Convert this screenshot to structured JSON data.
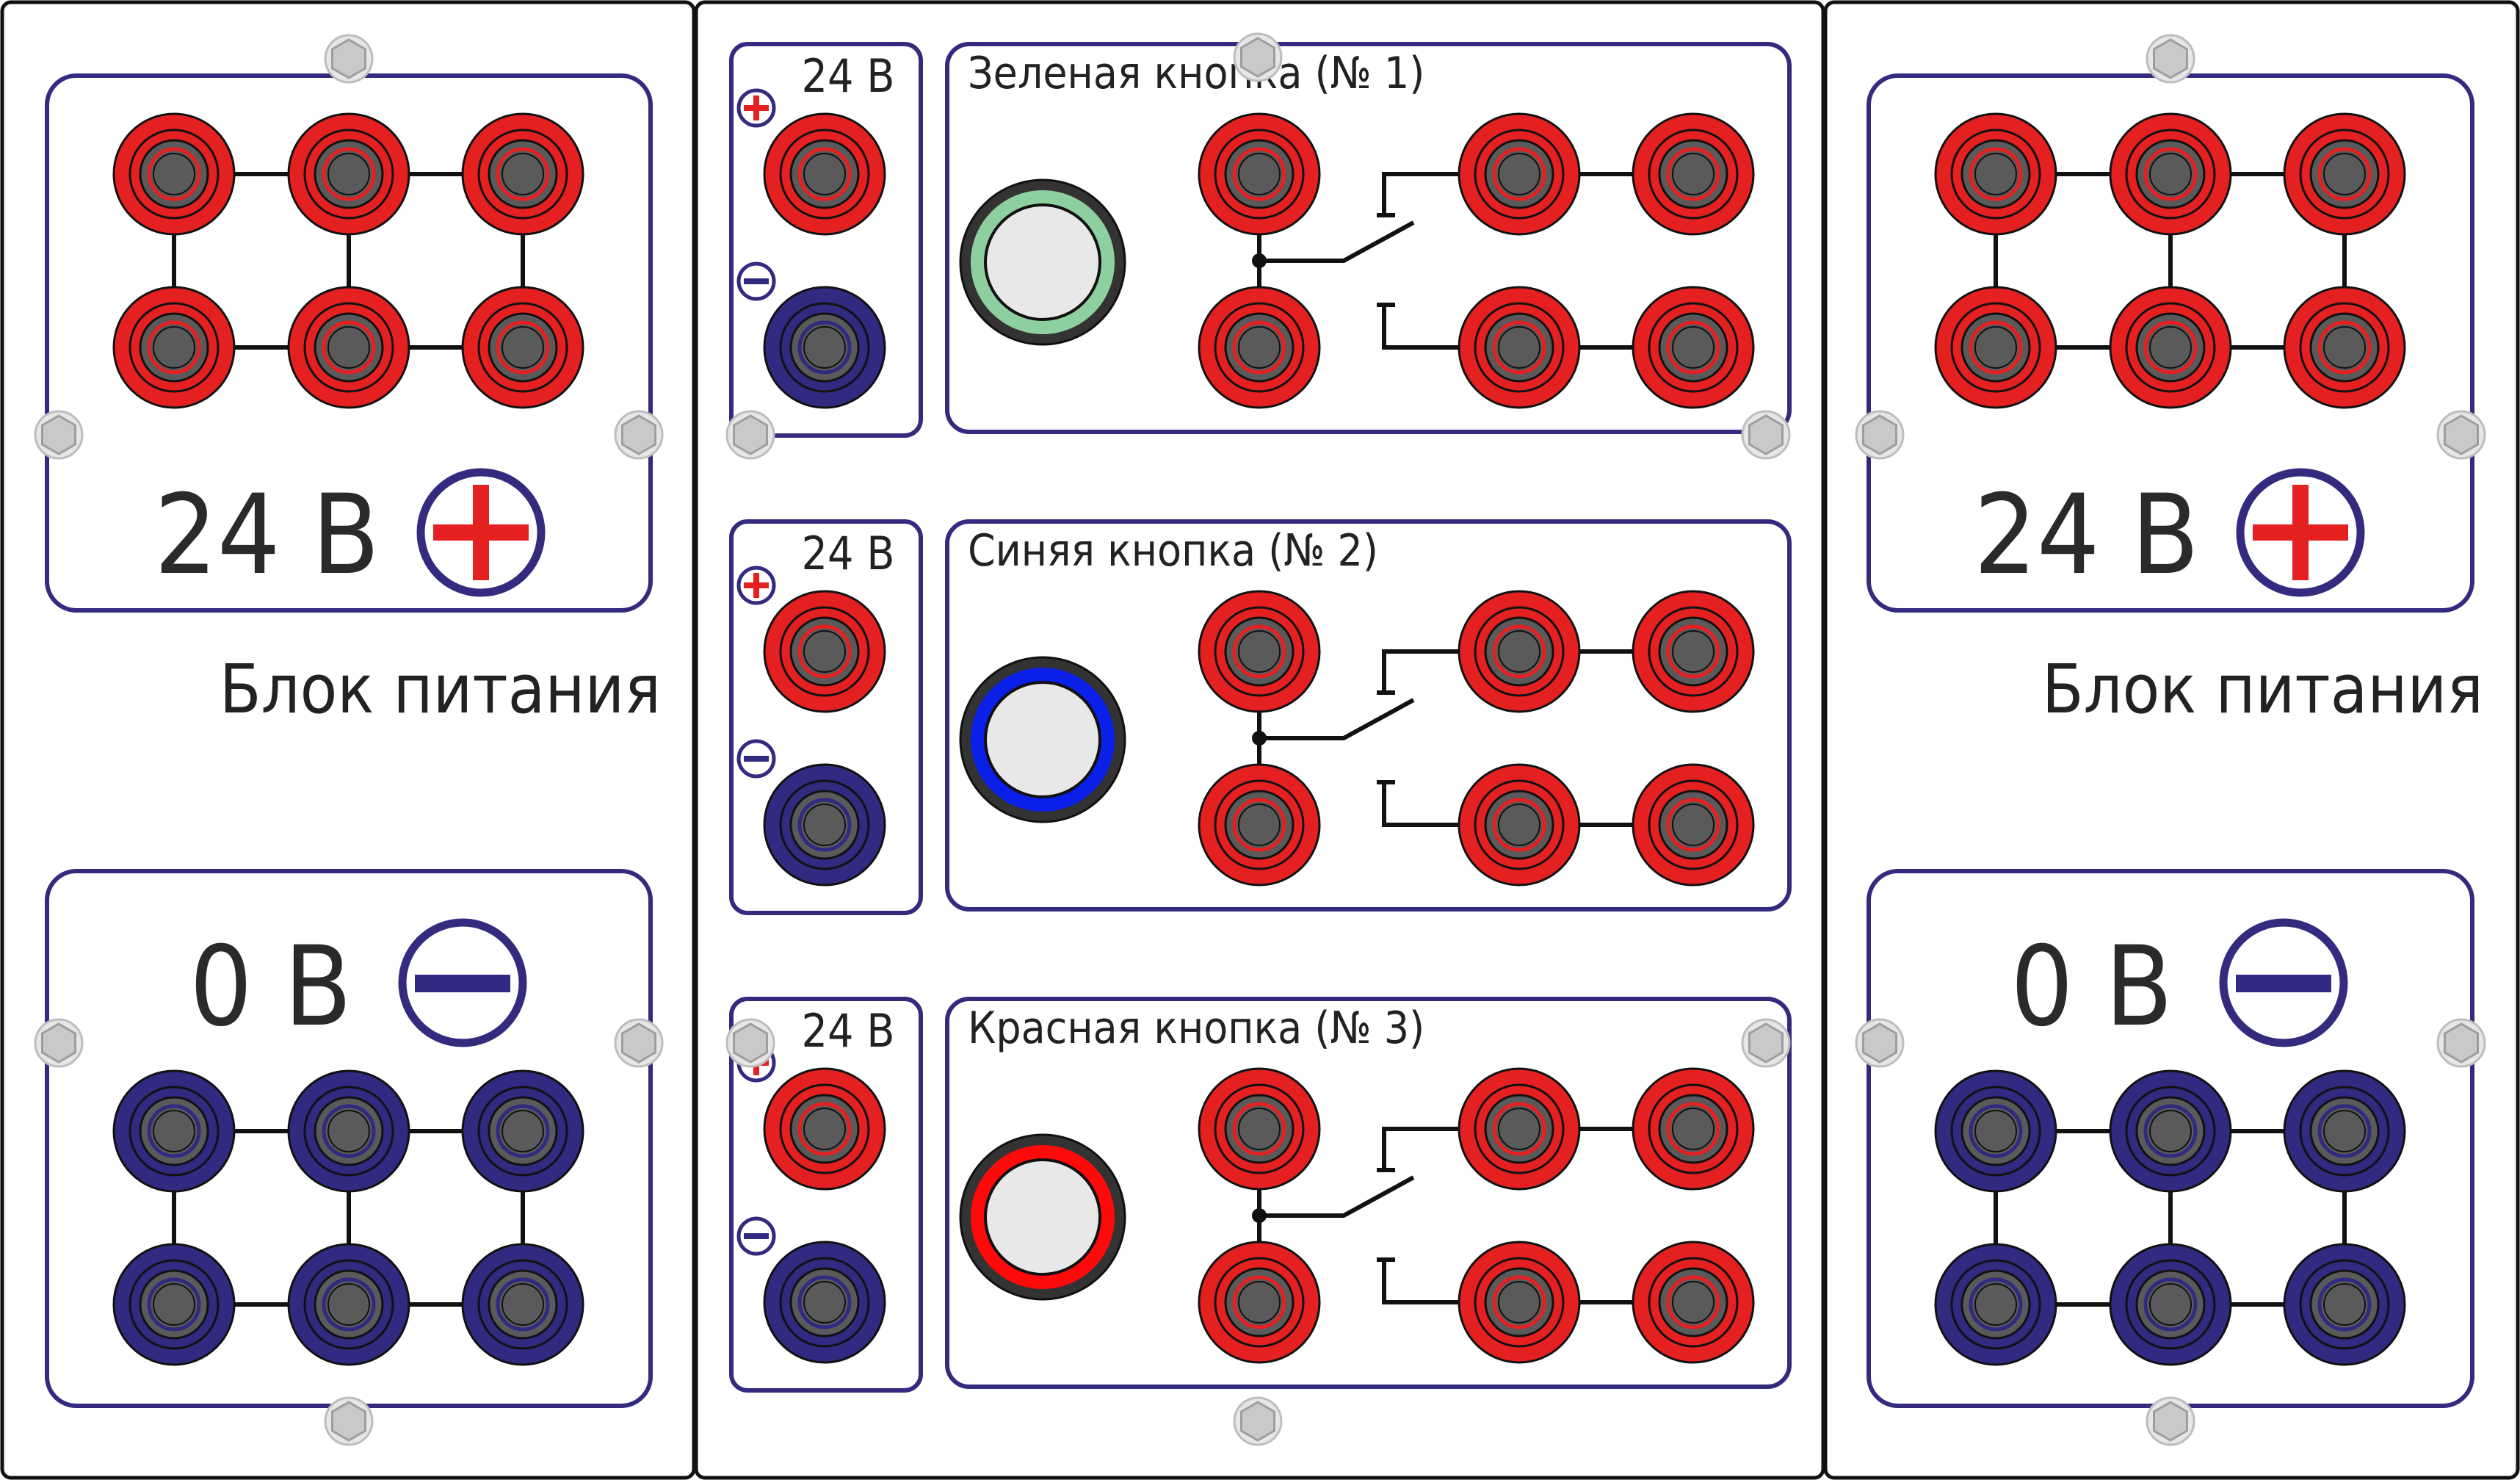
{
  "colors": {
    "red_jack": "#e52021",
    "blue_jack": "#302a80",
    "frame": "#342a7e",
    "jack_core": "#5a5a5a",
    "screw": "#c9c9c9",
    "green_button_ring": "#8ecf9f",
    "blue_button_ring": "#0a1fe8",
    "red_button_ring": "#ff0a0a",
    "button_face": "#e8e8e8"
  },
  "power_blocks": [
    {
      "positive_label": "24 В",
      "negative_label": "0 В",
      "title": "Блок питания",
      "plus_icon": "plus-icon",
      "minus_icon": "minus-icon"
    },
    {
      "positive_label": "24 В",
      "negative_label": "0 В",
      "title": "Блок питания",
      "plus_icon": "plus-icon",
      "minus_icon": "minus-icon"
    }
  ],
  "button_modules": [
    {
      "voltage_label": "24 В",
      "title": "Зеленая кнопка (№ 1)",
      "button_color": "green"
    },
    {
      "voltage_label": "24 В",
      "title": "Синяя кнопка (№ 2)",
      "button_color": "blue"
    },
    {
      "voltage_label": "24 В",
      "title": "Красная кнопка (№ 3)",
      "button_color": "red"
    }
  ]
}
